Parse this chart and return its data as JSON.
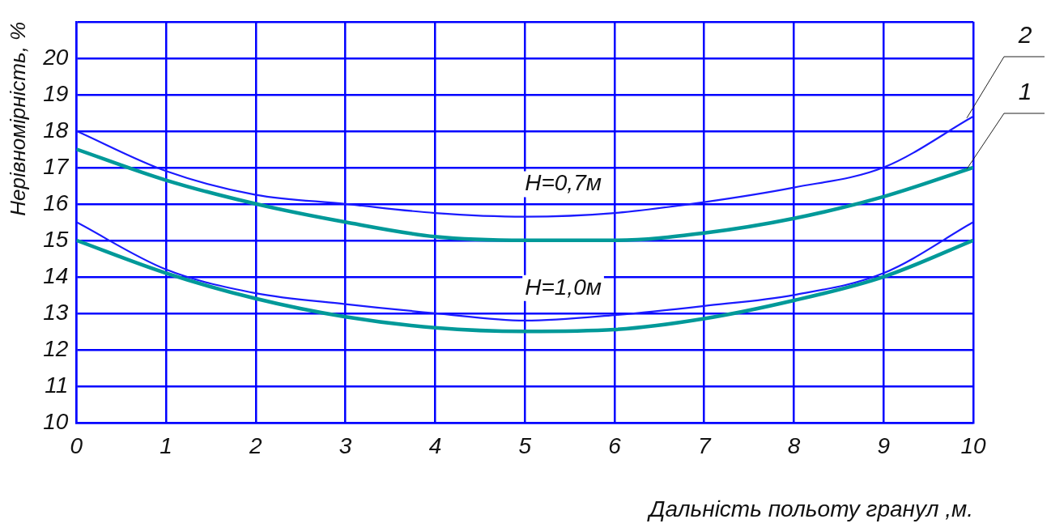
{
  "chart_data": {
    "type": "line",
    "xlabel": "Дальність польоту гранул ,м.",
    "ylabel": "Нерівномірність, %",
    "x": [
      0,
      1,
      2,
      3,
      4,
      5,
      6,
      7,
      8,
      9,
      10
    ],
    "xlim": [
      0,
      10
    ],
    "xticks": [
      0,
      1,
      2,
      3,
      4,
      5,
      6,
      7,
      8,
      9,
      10
    ],
    "ylim": [
      10,
      21
    ],
    "yticks": [
      10,
      11,
      12,
      13,
      14,
      15,
      16,
      17,
      18,
      19,
      20,
      {
        "value": 21,
        "label": null
      }
    ],
    "grid": true,
    "legend": false,
    "marker": "none",
    "line_style": "solid",
    "series": [
      {
        "name": "2",
        "color": "#1a1aff",
        "values": [
          18,
          16.9,
          16.25,
          16,
          15.75,
          15.65,
          15.75,
          16.05,
          16.45,
          17,
          18.4
        ]
      },
      {
        "name": "1",
        "color": "#009999",
        "values": [
          17.5,
          16.65,
          16,
          15.5,
          15.1,
          15,
          15,
          15.2,
          15.6,
          16.2,
          17
        ]
      },
      {
        "color": "#1a1aff",
        "values": [
          15.5,
          14.2,
          13.55,
          13.25,
          13,
          12.8,
          12.95,
          13.2,
          13.5,
          14.1,
          15.5
        ]
      },
      {
        "color": "#009999",
        "values": [
          15,
          14.1,
          13.4,
          12.9,
          12.6,
          12.5,
          12.55,
          12.85,
          13.35,
          14,
          15
        ]
      }
    ],
    "annotations": [
      "H=0,7м",
      "H=1,0м"
    ]
  }
}
